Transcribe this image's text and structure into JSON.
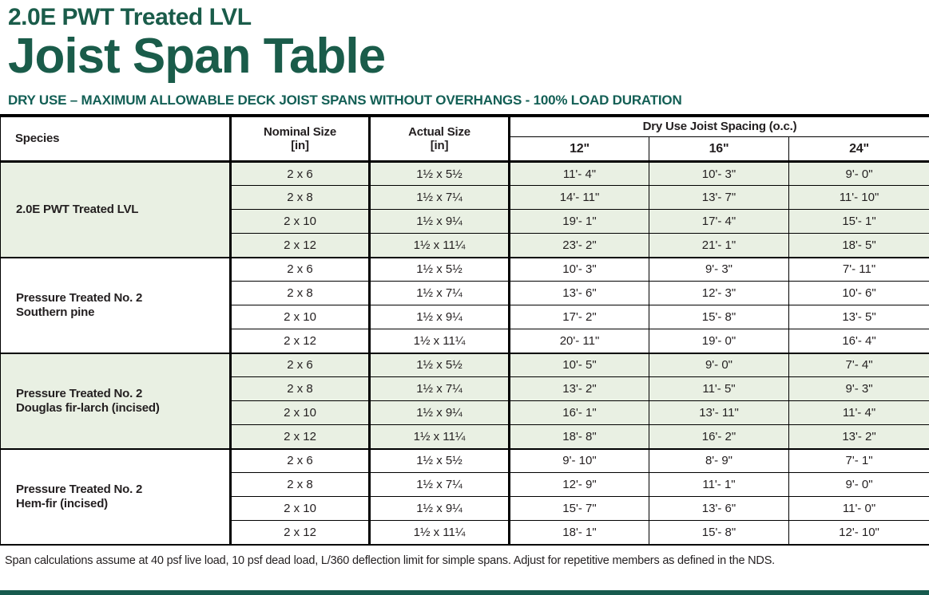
{
  "page": {
    "title_line1": "2.0E PWT Treated LVL",
    "title_line2": "Joist Span Table",
    "subtitle": "DRY USE – MAXIMUM ALLOWABLE DECK JOIST SPANS WITHOUT OVERHANGS - 100% LOAD DURATION",
    "footnote": "Span calculations assume at 40 psf live load, 10 psf dead load, L/360 deflection limit for simple spans. Adjust for repetitive members as defined in the NDS.",
    "colors": {
      "brand_green": "#1a5c4a",
      "subtitle_green": "#135f55",
      "shaded_row_green": "#e9f0e3",
      "text_dark": "#231f20",
      "bottom_rule_green": "#175a4e"
    }
  },
  "table": {
    "headers": {
      "species": "Species",
      "nominal_line1": "Nominal Size",
      "nominal_line2": "[in]",
      "actual_line1": "Actual Size",
      "actual_line2": "[in]",
      "spacing_group": "Dry Use Joist Spacing (o.c.)",
      "spacings": [
        "12\"",
        "16\"",
        "24\""
      ]
    },
    "sections": [
      {
        "species_lines": [
          "2.0E PWT Treated LVL"
        ],
        "shaded": true,
        "rows": [
          {
            "nominal": "2 x 6",
            "actual": "1½ x 5½",
            "spans": [
              "11'- 4\"",
              "10'- 3\"",
              "9'- 0\""
            ]
          },
          {
            "nominal": "2 x 8",
            "actual": "1½ x 7¼",
            "spans": [
              "14'- 11\"",
              "13'- 7\"",
              "11'- 10\""
            ]
          },
          {
            "nominal": "2 x 10",
            "actual": "1½ x 9¼",
            "spans": [
              "19'- 1\"",
              "17'- 4\"",
              "15'- 1\""
            ]
          },
          {
            "nominal": "2 x 12",
            "actual": "1½ x 11¼",
            "spans": [
              "23'- 2\"",
              "21'- 1\"",
              "18'- 5\""
            ]
          }
        ]
      },
      {
        "species_lines": [
          "Pressure Treated No. 2",
          "Southern pine"
        ],
        "shaded": false,
        "rows": [
          {
            "nominal": "2 x 6",
            "actual": "1½ x 5½",
            "spans": [
              "10'- 3\"",
              "9'- 3\"",
              "7'- 11\""
            ]
          },
          {
            "nominal": "2 x 8",
            "actual": "1½ x 7¼",
            "spans": [
              "13'- 6\"",
              "12'- 3\"",
              "10'- 6\""
            ]
          },
          {
            "nominal": "2 x 10",
            "actual": "1½ x 9¼",
            "spans": [
              "17'- 2\"",
              "15'- 8\"",
              "13'- 5\""
            ]
          },
          {
            "nominal": "2 x 12",
            "actual": "1½ x 11¼",
            "spans": [
              "20'- 11\"",
              "19'- 0\"",
              "16'- 4\""
            ]
          }
        ]
      },
      {
        "species_lines": [
          "Pressure Treated No. 2",
          "Douglas fir-larch (incised)"
        ],
        "shaded": true,
        "rows": [
          {
            "nominal": "2 x 6",
            "actual": "1½ x 5½",
            "spans": [
              "10'- 5\"",
              "9'- 0\"",
              "7'- 4\""
            ]
          },
          {
            "nominal": "2 x 8",
            "actual": "1½ x 7¼",
            "spans": [
              "13'- 2\"",
              "11'- 5\"",
              "9'- 3\""
            ]
          },
          {
            "nominal": "2 x 10",
            "actual": "1½ x 9¼",
            "spans": [
              "16'- 1\"",
              "13'- 11\"",
              "11'- 4\""
            ]
          },
          {
            "nominal": "2 x 12",
            "actual": "1½ x 11¼",
            "spans": [
              "18'- 8\"",
              "16'- 2\"",
              "13'- 2\""
            ]
          }
        ]
      },
      {
        "species_lines": [
          "Pressure Treated No. 2",
          "Hem-fir (incised)"
        ],
        "shaded": false,
        "rows": [
          {
            "nominal": "2 x 6",
            "actual": "1½ x 5½",
            "spans": [
              "9'- 10\"",
              "8'- 9\"",
              "7'- 1\""
            ]
          },
          {
            "nominal": "2 x 8",
            "actual": "1½ x 7¼",
            "spans": [
              "12'- 9\"",
              "11'- 1\"",
              "9'- 0\""
            ]
          },
          {
            "nominal": "2 x 10",
            "actual": "1½ x 9¼",
            "spans": [
              "15'- 7\"",
              "13'- 6\"",
              "11'- 0\""
            ]
          },
          {
            "nominal": "2 x 12",
            "actual": "1½ x 11¼",
            "spans": [
              "18'- 1\"",
              "15'- 8\"",
              "12'- 10\""
            ]
          }
        ]
      }
    ]
  }
}
